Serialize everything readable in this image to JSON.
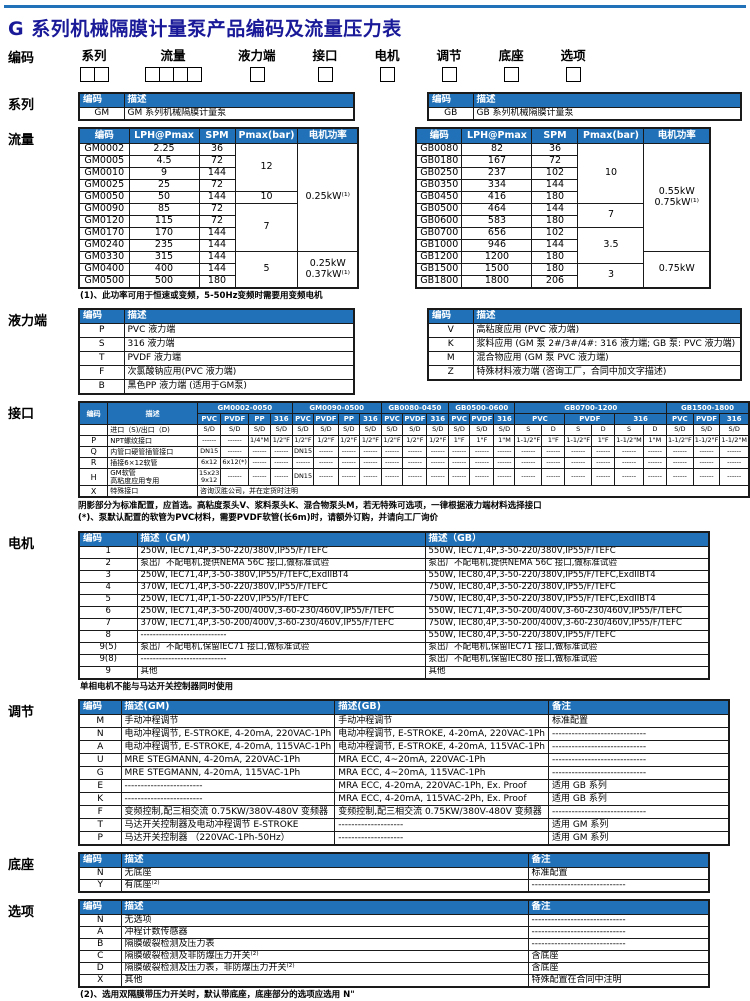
{
  "title": "G 系列机械隔膜计量泵产品编码及流量压力表",
  "coding": {
    "label": "编码",
    "fields": [
      {
        "label": "系列",
        "boxes": 2
      },
      {
        "label": "流量",
        "boxes": 4
      },
      {
        "label": "液力端",
        "boxes": 1
      },
      {
        "label": "接口",
        "boxes": 1
      },
      {
        "label": "电机",
        "boxes": 1
      },
      {
        "label": "调节",
        "boxes": 1
      },
      {
        "label": "底座",
        "boxes": 1
      },
      {
        "label": "选项",
        "boxes": 1
      }
    ]
  },
  "series": {
    "section_label": "系列",
    "headers": [
      "编码",
      "描述"
    ],
    "left_rows": [
      [
        "GM",
        "GM 系列机械隔膜计量泵"
      ]
    ],
    "right_rows": [
      [
        "GB",
        "GB 系列机械隔膜计量泵"
      ]
    ]
  },
  "flow": {
    "section_label": "流量",
    "headers": [
      "编码",
      "LPH@Pmax",
      "SPM",
      "Pmax(bar)",
      "电机功率"
    ],
    "gm": {
      "rows": [
        [
          "GM0002",
          "2.25",
          "36"
        ],
        [
          "GM0005",
          "4.5",
          "72"
        ],
        [
          "GM0010",
          "9",
          "144"
        ],
        [
          "GM0025",
          "25",
          "72"
        ],
        [
          "GM0050",
          "50",
          "144"
        ],
        [
          "GM0090",
          "85",
          "72"
        ],
        [
          "GM0120",
          "115",
          "72"
        ],
        [
          "GM0170",
          "170",
          "144"
        ],
        [
          "GM0240",
          "235",
          "144"
        ],
        [
          "GM0330",
          "315",
          "144"
        ],
        [
          "GM0400",
          "400",
          "144"
        ],
        [
          "GM0500",
          "500",
          "180"
        ]
      ],
      "pmax_groups": [
        {
          "value": "12",
          "span": 4
        },
        {
          "value": "10",
          "span": 1
        },
        {
          "value": "7",
          "span": 4
        },
        {
          "value": "5",
          "span": 3
        }
      ],
      "power_groups": [
        {
          "lines": [
            "0.25kW⁽¹⁾"
          ],
          "span": 9
        },
        {
          "lines": [
            "0.25kW",
            "0.37kW⁽¹⁾"
          ],
          "span": 3
        }
      ]
    },
    "gb": {
      "rows": [
        [
          "GB0080",
          "82",
          "36"
        ],
        [
          "GB0180",
          "167",
          "72"
        ],
        [
          "GB0250",
          "237",
          "102"
        ],
        [
          "GB0350",
          "334",
          "144"
        ],
        [
          "GB0450",
          "416",
          "180"
        ],
        [
          "GB0500",
          "464",
          "144"
        ],
        [
          "GB0600",
          "583",
          "180"
        ],
        [
          "GB0700",
          "656",
          "102"
        ],
        [
          "GB1000",
          "946",
          "144"
        ],
        [
          "GB1200",
          "1200",
          "180"
        ],
        [
          "GB1500",
          "1500",
          "180"
        ],
        [
          "GB1800",
          "1800",
          "206"
        ]
      ],
      "pmax_groups": [
        {
          "value": "10",
          "span": 5
        },
        {
          "value": "7",
          "span": 2
        },
        {
          "value": "3.5",
          "span": 3
        },
        {
          "value": "3",
          "span": 2
        }
      ],
      "power_groups": [
        {
          "lines": [
            "0.55kW",
            "0.75kW⁽¹⁾"
          ],
          "span": 9
        },
        {
          "lines": [
            "0.75kW"
          ],
          "span": 3
        }
      ]
    },
    "footnote": "(1)、此功率可用于恒速或变频，5-50Hz变频时需要用变频电机"
  },
  "hydraulic": {
    "section_label": "液力端",
    "headers": [
      "编码",
      "描述"
    ],
    "left_rows": [
      [
        "P",
        "PVC 液力端"
      ],
      [
        "S",
        "316 液力端"
      ],
      [
        "T",
        "PVDF 液力端"
      ],
      [
        "F",
        "次氯酸钠应用(PVC 液力端)"
      ],
      [
        "B",
        "黑色PP 液力端 (适用于GM泵)"
      ]
    ],
    "right_rows": [
      [
        "V",
        "高粘度应用 (PVC 液力端)"
      ],
      [
        "K",
        "浆料应用 (GM 泵 2#/3#/4#: 316 液力端; GB 泵: PVC 液力端)"
      ],
      [
        "M",
        "混合物应用 (GM 泵 PVC 液力端)"
      ],
      [
        "Z",
        "特殊材料液力端 (咨询工厂，合同中加文字描述)"
      ]
    ]
  },
  "interface": {
    "section_label": "接口",
    "code_header": "编码",
    "desc_header": "描述",
    "groups": [
      {
        "label": "GM0002-0050",
        "materials": [
          "PVC",
          "PVDF",
          "PP",
          "316"
        ],
        "split": false
      },
      {
        "label": "GM0090-0500",
        "materials": [
          "PVC",
          "PVDF",
          "PP",
          "316"
        ],
        "split": false
      },
      {
        "label": "GB0080-0450",
        "materials": [
          "PVC",
          "PVDF",
          "316"
        ],
        "split": false
      },
      {
        "label": "GB0500-0600",
        "materials": [
          "PVC",
          "PVDF",
          "316"
        ],
        "split": false
      },
      {
        "label": "GB0700-1200",
        "materials": [
          "PVC",
          "PVDF",
          "316"
        ],
        "split": true
      },
      {
        "label": "GB1500-1800",
        "materials": [
          "PVC",
          "PVDF",
          "316"
        ],
        "split": false
      }
    ],
    "sd_label": "进口（S)/出口（D)",
    "sd_values": [
      "S/D",
      "S/D",
      "S/D",
      "S/D",
      "S/D",
      "S/D",
      "S/D",
      "S/D",
      "S/D",
      "S/D",
      "S/D",
      "S/D",
      "S/D",
      "S/D",
      "S",
      "D",
      "S",
      "D",
      "S",
      "D",
      "S/D",
      "S/D",
      "S/D"
    ],
    "rows": [
      {
        "code": "P",
        "desc_lines": [
          "NPT螺纹接口"
        ],
        "cells": [
          {
            "t": "------"
          },
          {
            "t": "------"
          },
          {
            "t": "1/4\"M",
            "s": 1
          },
          {
            "t": "1/2\"F",
            "s": 1
          },
          {
            "t": "1/2\"F",
            "s": 1
          },
          {
            "t": "1/2\"F",
            "s": 1
          },
          {
            "t": "1/2\"F",
            "s": 1
          },
          {
            "t": "1/2\"F",
            "s": 1
          },
          {
            "t": "1/2\"F",
            "s": 1
          },
          {
            "t": "1/2\"F",
            "s": 1
          },
          {
            "t": "1/2\"F",
            "s": 1
          },
          {
            "t": "1\"F",
            "s": 1
          },
          {
            "t": "1\"F",
            "s": 1
          },
          {
            "t": "1\"M",
            "s": 1
          },
          {
            "t": "1-1/2\"F",
            "s": 1
          },
          {
            "t": "1\"F",
            "s": 1
          },
          {
            "t": "1-1/2\"F",
            "s": 1
          },
          {
            "t": "1\"F",
            "s": 1
          },
          {
            "t": "1-1/2\"M",
            "s": 1
          },
          {
            "t": "1\"M",
            "s": 1
          },
          {
            "t": "1-1/2\"F",
            "s": 1
          },
          {
            "t": "1-1/2\"F",
            "s": 1
          },
          {
            "t": "1-1/2\"M",
            "s": 1
          }
        ]
      },
      {
        "code": "Q",
        "desc_lines": [
          "内管口硬管插管接口"
        ],
        "cells": [
          {
            "t": "DN15",
            "s": 1
          },
          {
            "t": "------"
          },
          {
            "t": "------"
          },
          {
            "t": "------"
          },
          {
            "t": "DN15",
            "s": 1
          },
          {
            "t": "------"
          },
          {
            "t": "------"
          },
          {
            "t": "------"
          },
          {
            "t": "------"
          },
          {
            "t": "------"
          },
          {
            "t": "------"
          },
          {
            "t": "------"
          },
          {
            "t": "------"
          },
          {
            "t": "------"
          },
          {
            "t": "------"
          },
          {
            "t": "------"
          },
          {
            "t": "------"
          },
          {
            "t": "------"
          },
          {
            "t": "------"
          },
          {
            "t": "------"
          },
          {
            "t": "------"
          },
          {
            "t": "------"
          },
          {
            "t": "------"
          }
        ]
      },
      {
        "code": "R",
        "desc_lines": [
          "插接6×12软管"
        ],
        "cells": [
          {
            "t": "6x12",
            "s": 1
          },
          {
            "t": "6x12(*)",
            "s": 1
          },
          {
            "t": "------"
          },
          {
            "t": "------"
          },
          {
            "t": "------"
          },
          {
            "t": "------"
          },
          {
            "t": "------"
          },
          {
            "t": "------"
          },
          {
            "t": "------"
          },
          {
            "t": "------"
          },
          {
            "t": "------"
          },
          {
            "t": "------"
          },
          {
            "t": "------"
          },
          {
            "t": "------"
          },
          {
            "t": "------"
          },
          {
            "t": "------"
          },
          {
            "t": "------"
          },
          {
            "t": "------"
          },
          {
            "t": "------"
          },
          {
            "t": "------"
          },
          {
            "t": "------"
          },
          {
            "t": "------"
          },
          {
            "t": "------"
          }
        ]
      },
      {
        "code": "H",
        "desc_lines": [
          "GM软管",
          "高粘度应用专用"
        ],
        "cells": [
          {
            "lines": [
              "15x23",
              "9x12"
            ]
          },
          {
            "t": "------"
          },
          {
            "t": "------"
          },
          {
            "t": "------"
          },
          {
            "t": "DN15",
            "s": 1
          },
          {
            "t": "------"
          },
          {
            "t": "------"
          },
          {
            "t": "------"
          },
          {
            "t": "------"
          },
          {
            "t": "------"
          },
          {
            "t": "------"
          },
          {
            "t": "------"
          },
          {
            "t": "------"
          },
          {
            "t": "------"
          },
          {
            "t": "------"
          },
          {
            "t": "------"
          },
          {
            "t": "------"
          },
          {
            "t": "------"
          },
          {
            "t": "------"
          },
          {
            "t": "------"
          },
          {
            "t": "------"
          },
          {
            "t": "------"
          },
          {
            "t": "------"
          }
        ]
      }
    ],
    "special_row": {
      "code": "X",
      "desc": "特殊接口",
      "text": "咨询汉胜公司，并在定货时注明"
    },
    "notes": [
      "阴影部分为标准配置，应首选。高粘度泵头V、浆料泵头K、混合物泵头M，若无特殊可选项，一律根据液力端材料选择接口",
      "(*)、泵默认配置的软管为PVC材料，需要PVDF软管(长6m)时，请额外订购，并请向工厂询价"
    ]
  },
  "motor": {
    "section_label": "电机",
    "headers": [
      "编码",
      "描述（GM）",
      "描述（GB）"
    ],
    "rows": [
      [
        "1",
        "250W, IEC71,4P,3-50-220/380V,IP55/F/TEFC",
        "550W, IEC71,4P,3-50-220/380V,IP55/F/TEFC"
      ],
      [
        "2",
        "泵出厂不配电机,提供NEMA 56C 接口,做标准试验",
        "泵出厂不配电机,提供NEMA 56C 接口,做标准试验"
      ],
      [
        "3",
        "250W, IEC71,4P,3-50-380V,IP55/F/TEFC,ExdIIBT4",
        "550W, IEC80,4P,3-50-220/380V,IP55/F/TEFC,ExdIIBT4"
      ],
      [
        "4",
        "370W, IEC71,4P,3-50-220/380V,IP55/F/TEFC",
        "750W, IEC80,4P,3-50-220/380V,IP55/F/TEFC"
      ],
      [
        "5",
        "250W, IEC71,4P,1-50-220V,IP55/F/TEFC",
        "750W, IEC80,4P,3-50-220/380V,IP55/F/TEFC,ExdIIBT4"
      ],
      [
        "6",
        "250W, IEC71,4P,3-50-200/400V,3-60-230/460V,IP55/F/TEFC",
        "550W, IEC71,4P,3-50-200/400V,3-60-230/460V,IP55/F/TEFC"
      ],
      [
        "7",
        "370W, IEC71,4P,3-50-200/400V,3-60-230/460V,IP55/F/TEFC",
        "750W, IEC80,4P,3-50-200/400V,3-60-230/460V,IP55/F/TEFC"
      ],
      [
        "8",
        "----------------------------",
        "550W, IEC80,4P,3-50-220/380V,IP55/F/TEFC"
      ],
      [
        "9(5)",
        "泵出厂不配电机,保留IEC71 接口,做标准试验",
        "泵出厂不配电机,保留IEC71 接口,做标准试验"
      ],
      [
        "9(8)",
        "----------------------------",
        "泵出厂不配电机,保留IEC80 接口,做标准试验"
      ],
      [
        "9",
        "其他",
        "其他"
      ]
    ],
    "footnote": "单相电机不能与马达开关控制器同时使用"
  },
  "adjust": {
    "section_label": "调节",
    "headers": [
      "编码",
      "描述(GM)",
      "描述(GB)",
      "备注"
    ],
    "rows": [
      [
        "M",
        "手动冲程调节",
        "手动冲程调节",
        "标准配置"
      ],
      [
        "N",
        "电动冲程调节, E-STROKE, 4-20mA, 220VAC-1Ph",
        "电动冲程调节, E-STROKE, 4-20mA, 220VAC-1Ph",
        "-----------------------------"
      ],
      [
        "A",
        "电动冲程调节, E-STROKE, 4-20mA, 115VAC-1Ph",
        "电动冲程调节, E-STROKE, 4-20mA, 115VAC-1Ph",
        "-----------------------------"
      ],
      [
        "U",
        "MRE STEGMANN, 4-20mA, 220VAC-1Ph",
        "MRA ECC, 4~20mA, 220VAC-1Ph",
        "-----------------------------"
      ],
      [
        "G",
        "MRE STEGMANN, 4-20mA, 115VAC-1Ph",
        "MRA ECC, 4~20mA, 115VAC-1Ph",
        "-----------------------------"
      ],
      [
        "E",
        "------------------------",
        "MRA ECC, 4-20mA, 220VAC-1Ph, Ex. Proof",
        "适用 GB 系列"
      ],
      [
        "K",
        "------------------------",
        "MRA ECC, 4-20mA, 115VAC-2Ph, Ex. Proof",
        "适用 GB 系列"
      ],
      [
        "F",
        "变频控制,配三相交流 0.75KW/380V-480V 变频器",
        "变频控制,配三相交流 0.75KW/380V-480V 变频器",
        "-----------------------------"
      ],
      [
        "T",
        "马达开关控制器及电动冲程调节 E-STROKE",
        "--------------------",
        "适用 GM 系列"
      ],
      [
        "P",
        "马达开关控制器 （220VAC-1Ph-50Hz）",
        "--------------------",
        "适用 GM 系列"
      ]
    ]
  },
  "base": {
    "section_label": "底座",
    "headers": [
      "编码",
      "描述",
      "备注"
    ],
    "rows": [
      [
        "N",
        "无底座",
        "标准配置"
      ],
      [
        "Y",
        "有底座⁽²⁾",
        "-----------------------------"
      ]
    ]
  },
  "options": {
    "section_label": "选项",
    "headers": [
      "编码",
      "描述",
      "备注"
    ],
    "rows": [
      [
        "N",
        "无选项",
        "-----------------------------"
      ],
      [
        "A",
        "冲程计数传感器",
        "-----------------------------"
      ],
      [
        "B",
        "隔膜破裂检测及压力表",
        "-----------------------------"
      ],
      [
        "C",
        "隔膜破裂检测及非防爆压力开关⁽²⁾",
        "含底座"
      ],
      [
        "D",
        "隔膜破裂检测及压力表，非防爆压力开关⁽²⁾",
        "含底座"
      ],
      [
        "X",
        "其他",
        "特殊配置在合同中注明"
      ]
    ],
    "footnote": "(2)、选用双隔膜带压力开关时，默认带底座，底座部分的选项应选用 N\""
  }
}
